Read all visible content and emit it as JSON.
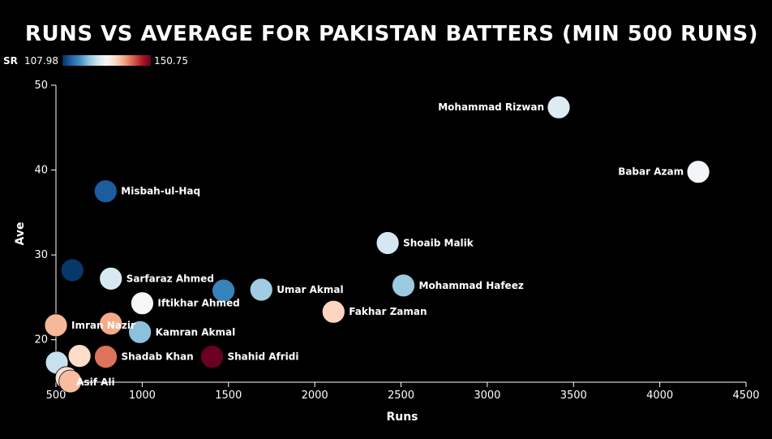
{
  "chart_data": {
    "type": "scatter",
    "title": "RUNS VS AVERAGE FOR PAKISTAN BATTERS (MIN 500 RUNS)",
    "xlabel": "Runs",
    "ylabel": "Ave",
    "xlim": [
      500,
      4500
    ],
    "ylim": [
      15,
      50
    ],
    "x_ticks": [
      500,
      1000,
      1500,
      2000,
      2500,
      3000,
      3500,
      4000,
      4500
    ],
    "y_ticks": [
      20,
      30,
      40,
      50
    ],
    "color_scale": {
      "label": "SR",
      "min": 107.98,
      "max": 150.75,
      "min_label": "107.98",
      "max_label": "150.75",
      "stops": [
        "#053061",
        "#2166ac",
        "#4393c3",
        "#92c5de",
        "#d1e5f0",
        "#f7f7f7",
        "#fddbc7",
        "#f4a582",
        "#d6604d",
        "#b2182b",
        "#67001f"
      ]
    },
    "points": [
      {
        "name": "Mohammad Rizwan",
        "runs": 3414,
        "ave": 47.4,
        "sr": 126.5,
        "label": "Mohammad Rizwan",
        "label_side": "left"
      },
      {
        "name": "Babar Azam",
        "runs": 4223,
        "ave": 39.8,
        "sr": 129.0,
        "label": "Babar Azam",
        "label_side": "left"
      },
      {
        "name": "Misbah-ul-Haq",
        "runs": 788,
        "ave": 37.5,
        "sr": 111.5,
        "label": "Misbah-ul-Haq",
        "label_side": "right"
      },
      {
        "name": "Shoaib Malik",
        "runs": 2423,
        "ave": 31.4,
        "sr": 125.5,
        "label": "Shoaib Malik",
        "label_side": "right"
      },
      {
        "name": "Unnamed batter A",
        "runs": 595,
        "ave": 28.2,
        "sr": 108.5,
        "label": "",
        "label_side": "right"
      },
      {
        "name": "Sarfaraz Ahmed",
        "runs": 818,
        "ave": 27.2,
        "sr": 126.0,
        "label": "Sarfaraz Ahmed",
        "label_side": "right"
      },
      {
        "name": "Mohammad Hafeez",
        "runs": 2514,
        "ave": 26.4,
        "sr": 121.5,
        "label": "Mohammad Hafeez",
        "label_side": "right"
      },
      {
        "name": "Umar Akmal",
        "runs": 1690,
        "ave": 25.9,
        "sr": 121.8,
        "label": "Umar Akmal",
        "label_side": "right"
      },
      {
        "name": "Unnamed batter B",
        "runs": 1471,
        "ave": 25.8,
        "sr": 115.0,
        "label": "",
        "label_side": "right"
      },
      {
        "name": "Iftikhar Ahmed",
        "runs": 1000,
        "ave": 24.3,
        "sr": 129.5,
        "label": "Iftikhar Ahmed",
        "label_side": "right"
      },
      {
        "name": "Fakhar Zaman",
        "runs": 2109,
        "ave": 23.3,
        "sr": 134.0,
        "label": "Fakhar Zaman",
        "label_side": "right"
      },
      {
        "name": "Imran Nazir",
        "runs": 500,
        "ave": 21.7,
        "sr": 136.5,
        "label": "Imran Nazir",
        "label_side": "right"
      },
      {
        "name": "Unnamed batter C",
        "runs": 818,
        "ave": 21.9,
        "sr": 137.5,
        "label": "",
        "label_side": "right"
      },
      {
        "name": "Kamran Akmal",
        "runs": 987,
        "ave": 20.9,
        "sr": 120.5,
        "label": "Kamran Akmal",
        "label_side": "right"
      },
      {
        "name": "Shadab Khan",
        "runs": 789,
        "ave": 18.0,
        "sr": 141.0,
        "label": "Shadab Khan",
        "label_side": "right"
      },
      {
        "name": "Shahid Afridi",
        "runs": 1405,
        "ave": 18.0,
        "sr": 150.5,
        "label": "Shahid Afridi",
        "label_side": "right"
      },
      {
        "name": "Unnamed batter D",
        "runs": 637,
        "ave": 18.1,
        "sr": 133.5,
        "label": "",
        "label_side": "right"
      },
      {
        "name": "Unnamed batter E",
        "runs": 505,
        "ave": 17.3,
        "sr": 124.5,
        "label": "",
        "label_side": "right"
      },
      {
        "name": "Asif Ali",
        "runs": 562,
        "ave": 15.5,
        "sr": 133.0,
        "label": "Asif Ali",
        "label_side": "right-below"
      },
      {
        "name": "Unnamed batter F",
        "runs": 583,
        "ave": 15.1,
        "sr": 136.0,
        "label": "",
        "label_side": "right"
      }
    ]
  }
}
